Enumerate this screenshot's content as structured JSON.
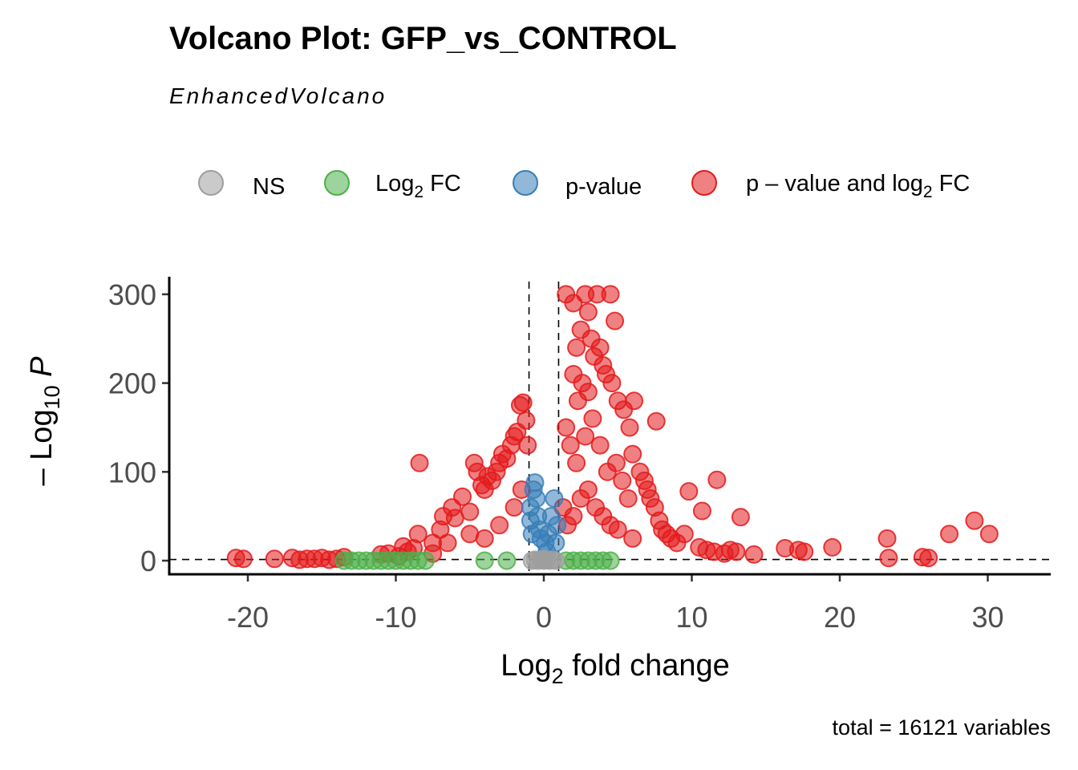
{
  "chart_data": {
    "type": "scatter",
    "title": "Volcano Plot: GFP_vs_CONTROL",
    "subtitle": "EnhancedVolcano",
    "caption": "total = 16121 variables",
    "xlabel": {
      "prefix": "Log",
      "sub": "2",
      "suffix": " fold change"
    },
    "ylabel": {
      "prefix": "– Log",
      "sub": "10",
      "suffix": " P"
    },
    "xlim": [
      -25,
      34.5
    ],
    "ylim": [
      -15,
      320
    ],
    "xticks": [
      -20,
      -10,
      0,
      10,
      20,
      30
    ],
    "yticks": [
      0,
      100,
      200,
      300
    ],
    "fc_cutoff": 1,
    "p_cutoff_line": 1.3,
    "colors": {
      "NS": "#9e9e9e",
      "FC": "#4daf4a",
      "P": "#377eb8",
      "FC_P": "#e41a1c"
    },
    "legend": [
      {
        "key": "NS",
        "label": "NS",
        "color": "#9e9e9e"
      },
      {
        "key": "FC",
        "label": "Log",
        "sub": "2",
        "suffix": " FC",
        "color": "#4daf4a"
      },
      {
        "key": "P",
        "label": "p-value",
        "color": "#377eb8"
      },
      {
        "key": "FC_P",
        "label": "p – value and log",
        "sub": "2",
        "suffix": " FC",
        "color": "#e41a1c"
      }
    ],
    "series": [
      {
        "name": "FC_P",
        "points": [
          [
            -20.8,
            3
          ],
          [
            -20.3,
            2
          ],
          [
            -18.2,
            2
          ],
          [
            -17,
            3
          ],
          [
            -16.5,
            1
          ],
          [
            -16,
            2
          ],
          [
            -15.5,
            2
          ],
          [
            -15,
            3
          ],
          [
            -14.5,
            1
          ],
          [
            -14,
            2
          ],
          [
            -13.5,
            4
          ],
          [
            -10.5,
            8
          ],
          [
            -9.8,
            5
          ],
          [
            -9.2,
            10
          ],
          [
            -8.8,
            14
          ],
          [
            -8.5,
            30
          ],
          [
            -8.4,
            110
          ],
          [
            -7.5,
            20
          ],
          [
            -7,
            35
          ],
          [
            -6.8,
            50
          ],
          [
            -6.2,
            60
          ],
          [
            -6,
            48
          ],
          [
            -5.5,
            72
          ],
          [
            -5,
            55
          ],
          [
            -4.7,
            110
          ],
          [
            -4.5,
            100
          ],
          [
            -4.2,
            85
          ],
          [
            -4,
            80
          ],
          [
            -3.8,
            95
          ],
          [
            -3.5,
            90
          ],
          [
            -3.2,
            100
          ],
          [
            -3,
            110
          ],
          [
            -2.8,
            120
          ],
          [
            -2.5,
            115
          ],
          [
            -2.2,
            130
          ],
          [
            -2,
            140
          ],
          [
            -1.8,
            145
          ],
          [
            -1.6,
            175
          ],
          [
            -1.4,
            178
          ],
          [
            -1.2,
            158
          ],
          [
            -1.1,
            130
          ],
          [
            -5,
            30
          ],
          [
            -4,
            25
          ],
          [
            -3,
            40
          ],
          [
            -2,
            60
          ],
          [
            -1.5,
            80
          ],
          [
            -6.5,
            20
          ],
          [
            -7.5,
            8
          ],
          [
            -9.5,
            16
          ],
          [
            -11,
            7
          ],
          [
            1.5,
            300
          ],
          [
            2,
            290
          ],
          [
            2.2,
            240
          ],
          [
            2.5,
            260
          ],
          [
            2.8,
            300
          ],
          [
            3,
            280
          ],
          [
            3.2,
            250
          ],
          [
            3.4,
            230
          ],
          [
            3.6,
            300
          ],
          [
            3.8,
            240
          ],
          [
            4,
            220
          ],
          [
            4.5,
            300
          ],
          [
            4.8,
            270
          ],
          [
            2,
            210
          ],
          [
            2.3,
            180
          ],
          [
            2.6,
            200
          ],
          [
            3,
            190
          ],
          [
            4.2,
            210
          ],
          [
            4.6,
            200
          ],
          [
            5,
            180
          ],
          [
            5.4,
            170
          ],
          [
            5.8,
            150
          ],
          [
            6.1,
            180
          ],
          [
            7.6,
            157
          ],
          [
            6,
            120
          ],
          [
            6.5,
            100
          ],
          [
            6.8,
            90
          ],
          [
            7,
            80
          ],
          [
            7.2,
            70
          ],
          [
            7.5,
            60
          ],
          [
            7.8,
            45
          ],
          [
            8,
            35
          ],
          [
            8.3,
            30
          ],
          [
            8.6,
            25
          ],
          [
            9,
            20
          ],
          [
            9.5,
            30
          ],
          [
            9.8,
            78
          ],
          [
            10.7,
            56
          ],
          [
            11.7,
            91
          ],
          [
            13.3,
            49
          ],
          [
            10.5,
            15
          ],
          [
            11,
            12
          ],
          [
            11.5,
            10
          ],
          [
            12.2,
            8
          ],
          [
            12.6,
            12
          ],
          [
            13,
            10
          ],
          [
            14.2,
            7
          ],
          [
            16.3,
            14
          ],
          [
            17.2,
            12
          ],
          [
            17.6,
            10
          ],
          [
            19.5,
            15
          ],
          [
            23.2,
            25
          ],
          [
            23.3,
            3
          ],
          [
            25.6,
            4
          ],
          [
            26,
            3
          ],
          [
            27.4,
            30
          ],
          [
            29.1,
            45
          ],
          [
            30.1,
            30
          ],
          [
            1.5,
            150
          ],
          [
            1.8,
            130
          ],
          [
            2.2,
            110
          ],
          [
            2.8,
            140
          ],
          [
            3.3,
            160
          ],
          [
            3.8,
            130
          ],
          [
            4.3,
            100
          ],
          [
            4.9,
            110
          ],
          [
            5.3,
            90
          ],
          [
            5.7,
            70
          ],
          [
            1.3,
            60
          ],
          [
            1.6,
            40
          ],
          [
            2,
            50
          ],
          [
            2.5,
            70
          ],
          [
            3,
            80
          ],
          [
            3.5,
            60
          ],
          [
            4,
            50
          ],
          [
            4.5,
            40
          ],
          [
            5,
            35
          ],
          [
            6,
            25
          ]
        ]
      },
      {
        "name": "FC",
        "points": [
          [
            -13.5,
            0
          ],
          [
            -13,
            0
          ],
          [
            -12.5,
            0
          ],
          [
            -12,
            0
          ],
          [
            -11.5,
            0
          ],
          [
            -11,
            0
          ],
          [
            -10.5,
            0
          ],
          [
            -10,
            0
          ],
          [
            -9.5,
            0
          ],
          [
            -9,
            0
          ],
          [
            -8.5,
            0
          ],
          [
            -8,
            0
          ],
          [
            -4,
            0
          ],
          [
            -2.5,
            0
          ],
          [
            1.5,
            0
          ],
          [
            2,
            0
          ],
          [
            2.5,
            0
          ],
          [
            3,
            0
          ],
          [
            3.5,
            0
          ],
          [
            4,
            0
          ],
          [
            4.5,
            0
          ]
        ]
      },
      {
        "name": "P",
        "points": [
          [
            -0.9,
            60
          ],
          [
            -0.9,
            45
          ],
          [
            -0.7,
            80
          ],
          [
            -0.6,
            88
          ],
          [
            -0.5,
            70
          ],
          [
            -0.4,
            50
          ],
          [
            -0.3,
            35
          ],
          [
            -0.2,
            25
          ],
          [
            0.1,
            20
          ],
          [
            0.3,
            30
          ],
          [
            0.5,
            50
          ],
          [
            0.7,
            70
          ],
          [
            0.9,
            40
          ],
          [
            0.8,
            20
          ],
          [
            -0.8,
            30
          ],
          [
            0.2,
            10
          ]
        ]
      },
      {
        "name": "NS",
        "points": [
          [
            -0.8,
            0
          ],
          [
            -0.6,
            1
          ],
          [
            -0.4,
            0
          ],
          [
            -0.2,
            1
          ],
          [
            0,
            0
          ],
          [
            0.2,
            1
          ],
          [
            0.4,
            0
          ],
          [
            0.6,
            1
          ],
          [
            0.8,
            0
          ],
          [
            0,
            2
          ]
        ]
      }
    ]
  }
}
